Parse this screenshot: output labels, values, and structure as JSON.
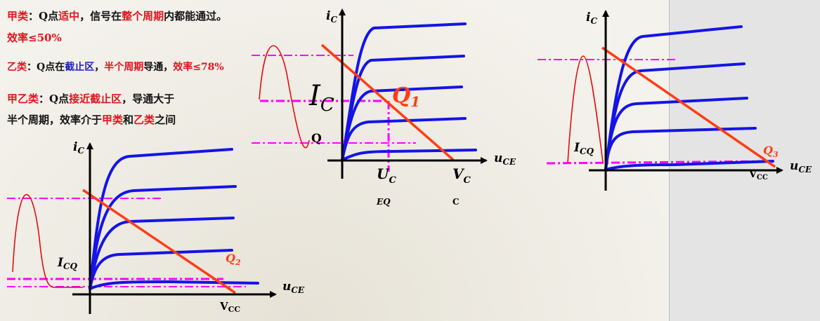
{
  "text": {
    "line1": [
      {
        "t": "甲类",
        "c": "red"
      },
      {
        "t": "：Q点",
        "c": "black"
      },
      {
        "t": "适中",
        "c": "red"
      },
      {
        "t": "，信号在",
        "c": "black"
      },
      {
        "t": "整个周期",
        "c": "red"
      },
      {
        "t": "内都能通过。",
        "c": "black"
      }
    ],
    "line2": [
      {
        "t": "效率≤50%",
        "c": "red"
      }
    ],
    "line3": [
      {
        "t": "乙类",
        "c": "red"
      },
      {
        "t": "：Q点在",
        "c": "black"
      },
      {
        "t": "截止区",
        "c": "blue"
      },
      {
        "t": "，",
        "c": "black"
      },
      {
        "t": "半个周期",
        "c": "red"
      },
      {
        "t": "导通，",
        "c": "black"
      },
      {
        "t": "效率≤78%",
        "c": "red"
      }
    ],
    "line4": [
      {
        "t": "甲乙类",
        "c": "red"
      },
      {
        "t": "：Q点",
        "c": "black"
      },
      {
        "t": "接近截止区",
        "c": "red"
      },
      {
        "t": "，导通大于",
        "c": "black"
      }
    ],
    "line5": [
      {
        "t": "半个周期，效率介于",
        "c": "black"
      },
      {
        "t": "甲类",
        "c": "red"
      },
      {
        "t": "和",
        "c": "black"
      },
      {
        "t": "乙类",
        "c": "red"
      },
      {
        "t": "之间",
        "c": "black"
      }
    ]
  },
  "colors": {
    "curve": "#1414e6",
    "loadline": "#ff3c14",
    "dash": "#ff00ff",
    "sine": "#e01010",
    "q_label": "#ff3c14"
  },
  "graph1": {
    "ic_main": "i",
    "ic_sub": "C",
    "uce_main": "u",
    "uce_sub": "CE",
    "IC_main": "I",
    "IC_sub": "C",
    "q1_main": "Q",
    "q1_sub": "1",
    "q_label": "Q",
    "uc_main": "U",
    "uc_sub": "C",
    "eq": "EQ",
    "vc_main": "V",
    "vc_sub": "C",
    "vc_extra": "C"
  },
  "graph2": {
    "ic_main": "i",
    "ic_sub": "C",
    "uce_main": "u",
    "uce_sub": "CE",
    "icq_main": "I",
    "icq_sub": "CQ",
    "q_main": "Q",
    "q_sub": "2",
    "vcc_main": "V",
    "vcc_sub": "CC"
  },
  "graph3": {
    "ic_main": "i",
    "ic_sub": "C",
    "uce_main": "u",
    "uce_sub": "CE",
    "icq_main": "I",
    "icq_sub": "CQ",
    "q_main": "Q",
    "q_sub": "3",
    "vcc_main": "V",
    "vcc_sub": "CC"
  }
}
